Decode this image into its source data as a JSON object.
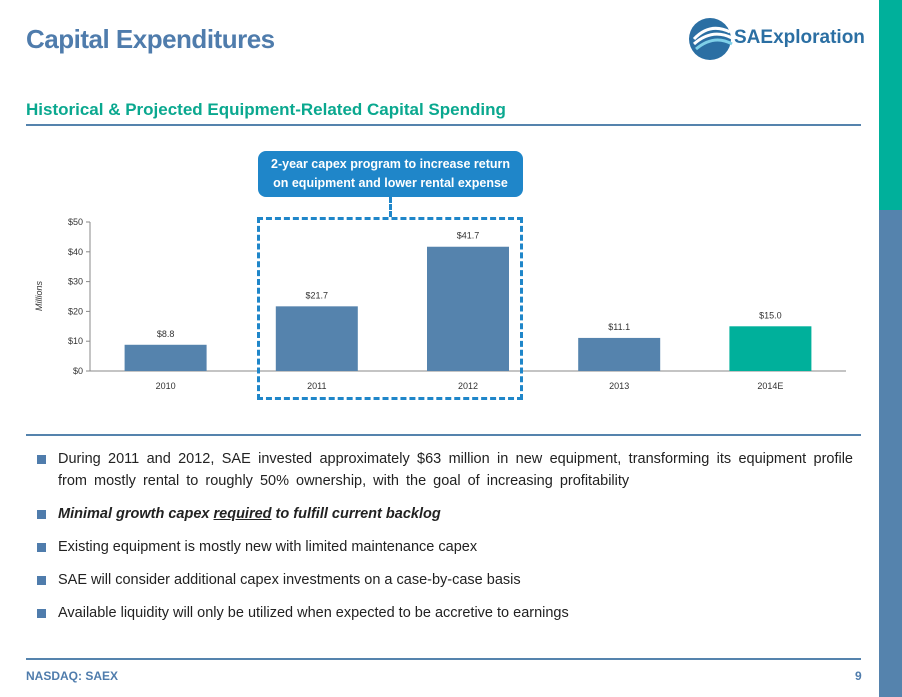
{
  "header": {
    "title": "Capital Expenditures",
    "logo_text": "SAExploration",
    "subtitle": "Historical & Projected Equipment-Related Capital Spending"
  },
  "callout": {
    "line1": "2-year capex program to increase return",
    "line2": "on equipment and lower rental expense"
  },
  "chart_data": {
    "type": "bar",
    "categories": [
      "2010",
      "2011",
      "2012",
      "2013",
      "2014E"
    ],
    "values": [
      8.8,
      21.7,
      41.7,
      11.1,
      15.0
    ],
    "data_labels": [
      "$8.8",
      "$21.7",
      "$41.7",
      "$11.1",
      "$15.0"
    ],
    "bar_colors": [
      "#5583ad",
      "#5583ad",
      "#5583ad",
      "#5583ad",
      "#00b09b"
    ],
    "title": "",
    "xlabel": "",
    "ylabel": "Millions",
    "ylim": [
      0,
      50
    ],
    "yticks": [
      0,
      10,
      20,
      30,
      40,
      50
    ],
    "ytick_labels": [
      "$0",
      "$10",
      "$20",
      "$30",
      "$40",
      "$50"
    ],
    "grid": false,
    "legend": "none"
  },
  "bullets": {
    "b1": "During 2011 and 2012, SAE invested approximately $63 million in new equipment, transforming its equipment profile from mostly rental to roughly 50% ownership, with the goal of increasing profitability",
    "b2_before": "Minimal growth capex ",
    "b2_underlined": "required",
    "b2_after": " to fulfill current backlog",
    "b3": "Existing equipment is mostly new with limited maintenance capex",
    "b4": "SAE will consider additional capex investments on a case-by-case basis",
    "b5": "Available liquidity will only be utilized when expected to be accretive to earnings"
  },
  "footer": {
    "left": "NASDAQ: SAEX",
    "page": "9"
  },
  "colors": {
    "accent_blue": "#4f7cac",
    "teal": "#00b09b",
    "callout_blue": "#1f86c9",
    "bar_blue": "#5583ad"
  }
}
